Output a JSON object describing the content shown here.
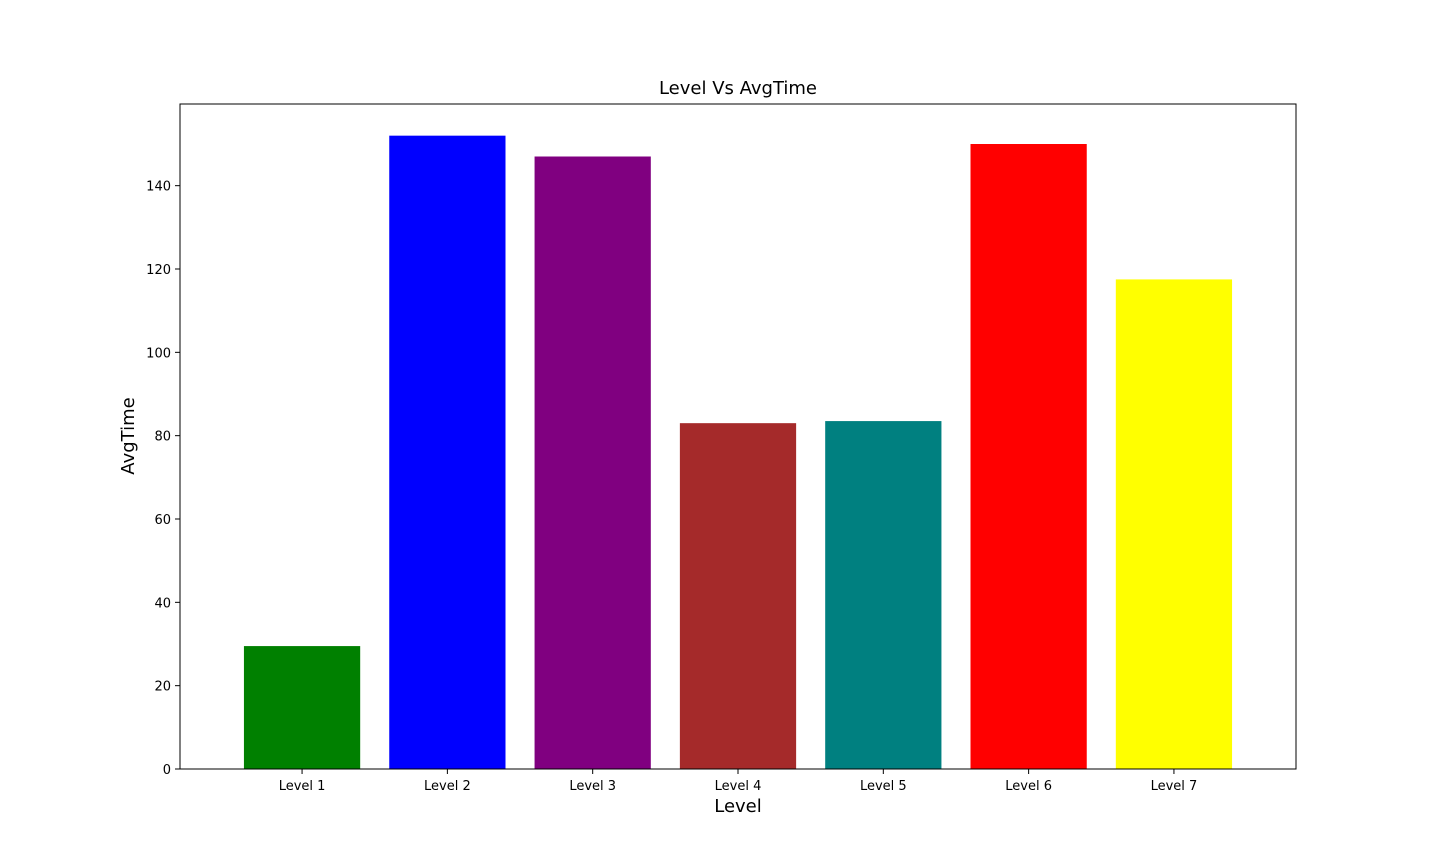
{
  "chart_data": {
    "type": "bar",
    "title": "Level Vs AvgTime",
    "xlabel": "Level",
    "ylabel": "AvgTime",
    "categories": [
      "Level 1",
      "Level 2",
      "Level 3",
      "Level 4",
      "Level 5",
      "Level 6",
      "Level 7"
    ],
    "values": [
      29.5,
      152,
      147,
      83,
      83.5,
      150,
      117.5
    ],
    "colors": [
      "#008000",
      "#0000ff",
      "#800080",
      "#a52a2a",
      "#008080",
      "#ff0000",
      "#ffff00"
    ],
    "ylim": [
      0,
      159.6
    ],
    "yticks": [
      0,
      20,
      40,
      60,
      80,
      100,
      120,
      140
    ],
    "grid": false,
    "legend": "none"
  }
}
